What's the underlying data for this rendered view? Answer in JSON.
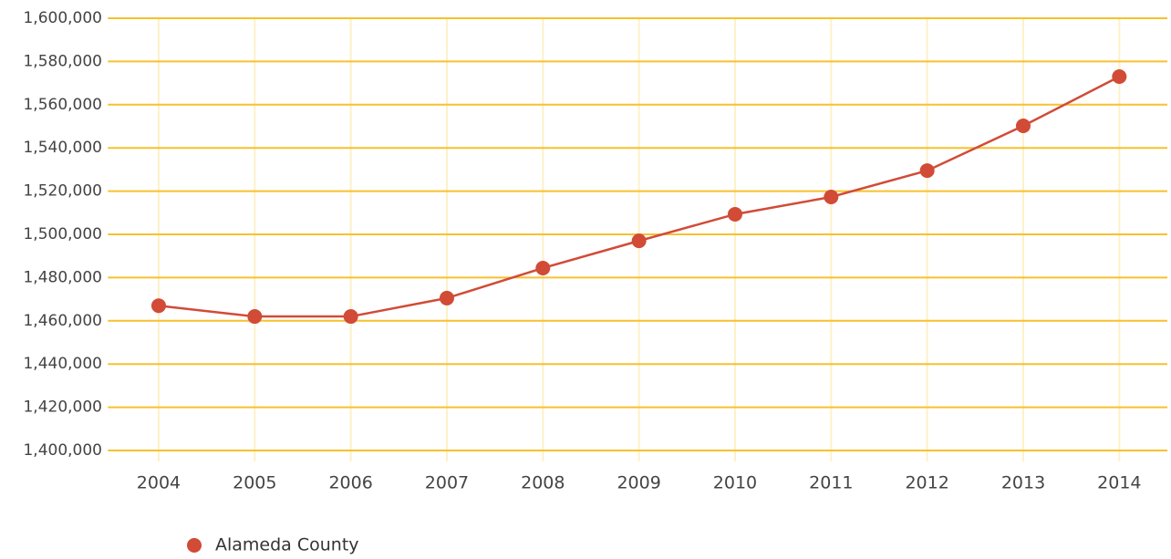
{
  "chart_data": {
    "type": "line",
    "categories": [
      "2004",
      "2005",
      "2006",
      "2007",
      "2008",
      "2009",
      "2010",
      "2011",
      "2012",
      "2013",
      "2014"
    ],
    "series": [
      {
        "name": "Alameda County",
        "color": "#d14b37",
        "values": [
          1467000,
          1462000,
          1462000,
          1470500,
          1484400,
          1497000,
          1509300,
          1517300,
          1529500,
          1550200,
          1573000
        ]
      }
    ],
    "ylim": [
      1400000,
      1600000
    ],
    "yticks": [
      {
        "value": 1400000,
        "label": "1,400,000"
      },
      {
        "value": 1420000,
        "label": "1,420,000"
      },
      {
        "value": 1440000,
        "label": "1,440,000"
      },
      {
        "value": 1460000,
        "label": "1,460,000"
      },
      {
        "value": 1480000,
        "label": "1,480,000"
      },
      {
        "value": 1500000,
        "label": "1,500,000"
      },
      {
        "value": 1520000,
        "label": "1,520,000"
      },
      {
        "value": 1540000,
        "label": "1,540,000"
      },
      {
        "value": 1560000,
        "label": "1,560,000"
      },
      {
        "value": 1580000,
        "label": "1,580,000"
      },
      {
        "value": 1600000,
        "label": "1,600,000"
      }
    ],
    "grid": true,
    "grid_color": "#f7c12e",
    "legend": "bottom-left"
  }
}
